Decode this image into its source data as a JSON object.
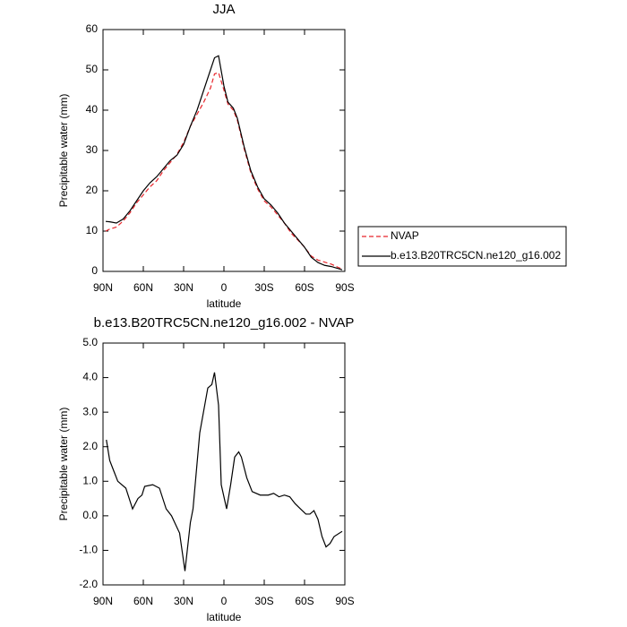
{
  "chart_data": [
    {
      "type": "line",
      "title": "JJA",
      "xlabel": "latitude",
      "ylabel": "Precipitable water (mm)",
      "x": [
        88,
        85,
        80,
        75,
        70,
        65,
        60,
        55,
        50,
        45,
        40,
        35,
        30,
        25,
        20,
        15,
        10,
        7,
        4,
        0,
        -3,
        -7,
        -10,
        -15,
        -20,
        -25,
        -30,
        -35,
        -40,
        -45,
        -50,
        -55,
        -60,
        -65,
        -70,
        -75,
        -80,
        -85,
        -88
      ],
      "xlim": [
        90,
        -90
      ],
      "xticks": [
        {
          "value": 90,
          "label": "90N"
        },
        {
          "value": 60,
          "label": "60N"
        },
        {
          "value": 30,
          "label": "30N"
        },
        0,
        {
          "value": -30,
          "label": "30S"
        },
        {
          "value": -60,
          "label": "60S"
        },
        {
          "value": -90,
          "label": "90S"
        }
      ],
      "ylim": [
        0,
        60
      ],
      "yticks": [
        0,
        10,
        20,
        30,
        40,
        50,
        60
      ],
      "legend": "outside-right",
      "series": [
        {
          "name": "NVAP",
          "color": "#e8252b",
          "line_style": "dashed",
          "values": [
            10,
            10.5,
            11,
            12.5,
            14.5,
            17,
            19,
            21,
            22.5,
            25,
            27,
            29,
            32,
            36,
            39,
            42,
            45.5,
            49,
            49.3,
            45,
            41.5,
            40,
            37.5,
            30.5,
            24.5,
            20.5,
            17.5,
            16,
            14,
            12,
            9.5,
            7.8,
            6,
            3.8,
            2.8,
            2.3,
            1.8,
            1.0,
            0.6
          ]
        },
        {
          "name": "b.e13.B20TRC5CN.ne120_g16.002",
          "color": "#000000",
          "line_style": "solid",
          "values": [
            12.4,
            12.3,
            12.0,
            13.0,
            15.0,
            17.5,
            20.0,
            22.0,
            23.5,
            25.5,
            27.5,
            28.8,
            31.5,
            36,
            40,
            45,
            50,
            53,
            53.5,
            46,
            42,
            40.5,
            38,
            31,
            25,
            21,
            18,
            16.5,
            14.5,
            12,
            10,
            8,
            6,
            3.5,
            2.2,
            1.5,
            1.2,
            0.7,
            0.4
          ]
        }
      ]
    },
    {
      "type": "line",
      "title": "b.e13.B20TRC5CN.ne120_g16.002 - NVAP",
      "xlabel": "latitude",
      "ylabel": "Precipitable water (mm)",
      "x": [
        87.5,
        85,
        83,
        79,
        73,
        68,
        64,
        61,
        59,
        53,
        48,
        43,
        39,
        33,
        29,
        25,
        23,
        18,
        12,
        9,
        7,
        4,
        2,
        -2,
        -5,
        -8,
        -11,
        -13,
        -17,
        -21,
        -27,
        -33,
        -37,
        -41,
        -45,
        -49,
        -53,
        -57,
        -61,
        -64,
        -67,
        -70,
        -73,
        -76,
        -79,
        -82,
        -88
      ],
      "xlim": [
        90,
        -90
      ],
      "xticks": [
        {
          "value": 90,
          "label": "90N"
        },
        {
          "value": 60,
          "label": "60N"
        },
        {
          "value": 30,
          "label": "30N"
        },
        0,
        {
          "value": -30,
          "label": "30S"
        },
        {
          "value": -60,
          "label": "60S"
        },
        {
          "value": -90,
          "label": "90S"
        }
      ],
      "ylim": [
        -2,
        5
      ],
      "yticks": [
        {
          "value": -2,
          "label": "-2.0"
        },
        {
          "value": -1,
          "label": "-1.0"
        },
        {
          "value": 0,
          "label": "0.0"
        },
        {
          "value": 1,
          "label": "1.0"
        },
        {
          "value": 2,
          "label": "2.0"
        },
        {
          "value": 3,
          "label": "3.0"
        },
        {
          "value": 4,
          "label": "4.0"
        },
        {
          "value": 5,
          "label": "5.0"
        }
      ],
      "series": [
        {
          "color": "#000000",
          "line_style": "solid",
          "values": [
            2.2,
            1.6,
            1.4,
            1.0,
            0.8,
            0.2,
            0.5,
            0.6,
            0.85,
            0.9,
            0.8,
            0.2,
            0.0,
            -0.5,
            -1.6,
            -0.2,
            0.2,
            2.4,
            3.7,
            3.8,
            4.15,
            3.2,
            0.9,
            0.2,
            0.9,
            1.7,
            1.85,
            1.7,
            1.1,
            0.7,
            0.6,
            0.6,
            0.65,
            0.55,
            0.6,
            0.55,
            0.35,
            0.2,
            0.05,
            0.05,
            0.15,
            -0.1,
            -0.6,
            -0.9,
            -0.8,
            -0.6,
            -0.45
          ]
        }
      ]
    }
  ]
}
